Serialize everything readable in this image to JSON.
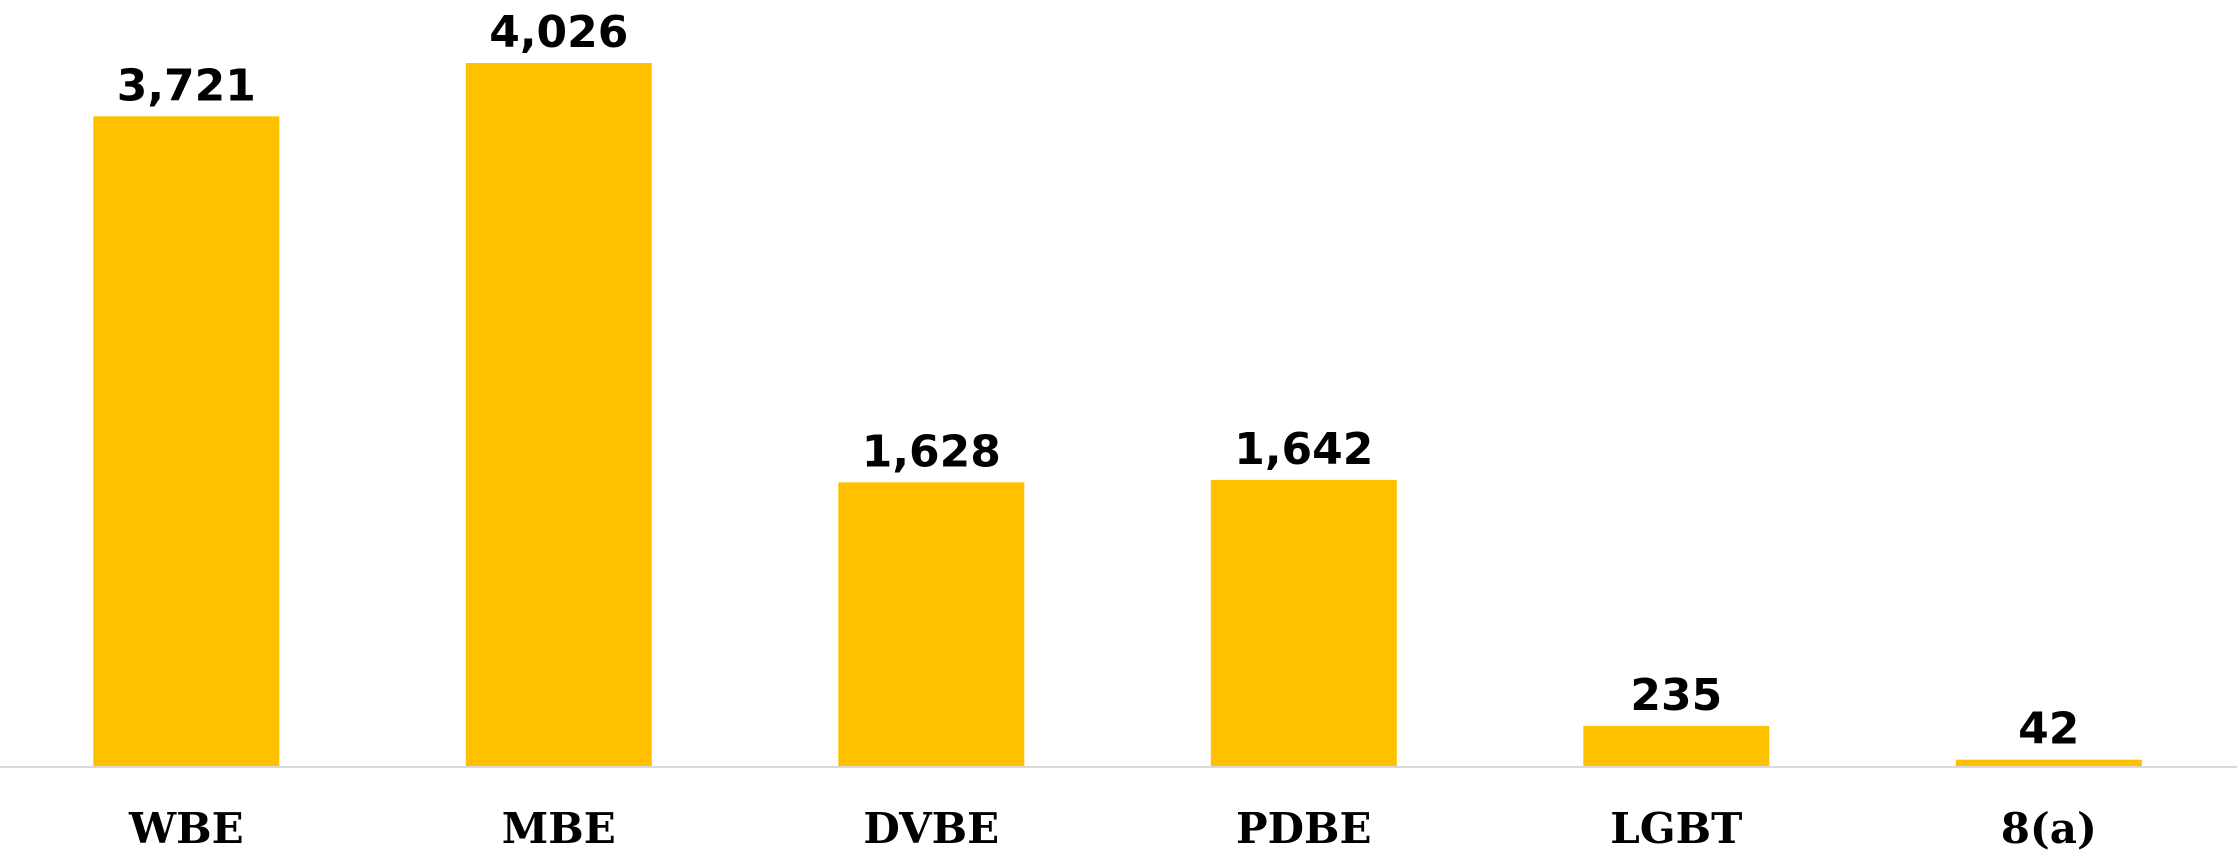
{
  "chart_data": {
    "type": "bar",
    "categories": [
      "WBE",
      "MBE",
      "DVBE",
      "PDBE",
      "LGBT",
      "8(a)"
    ],
    "values": [
      3721,
      4026,
      1628,
      1642,
      235,
      42
    ],
    "value_labels": [
      "3,721",
      "4,026",
      "1,628",
      "1,642",
      "235",
      "42"
    ],
    "title": "",
    "xlabel": "",
    "ylabel": "",
    "ylim": [
      0,
      4026
    ],
    "grid": false,
    "legend": "none",
    "bar_color": "#FFC000",
    "baseline_color": "#D9D9D9",
    "text_color": "#000000"
  }
}
